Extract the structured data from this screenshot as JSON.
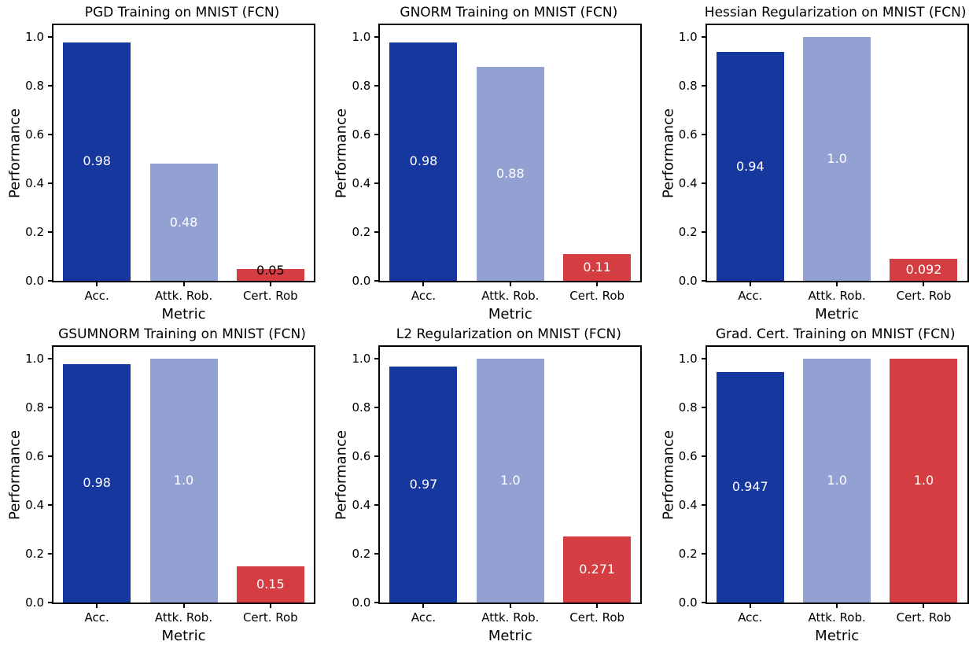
{
  "figure": {
    "background": "#ffffff",
    "rows": 2,
    "cols": 3
  },
  "palette": {
    "accuracy_bar": "#15379e",
    "attack_robustness_bar": "#92a1d2",
    "certified_robustness_bar": "#d43d42",
    "spine": "#000000",
    "text": "#000000",
    "bar_label_light": "#ffffff",
    "bar_label_dark": "#000000"
  },
  "axis": {
    "ylabel": "Performance",
    "xlabel": "Metric",
    "ytick_labels": [
      "0.0",
      "0.2",
      "0.4",
      "0.6",
      "0.8",
      "1.0"
    ],
    "ytick_values": [
      0.0,
      0.2,
      0.4,
      0.6,
      0.8,
      1.0
    ]
  },
  "chart_data": [
    {
      "type": "bar",
      "title": "PGD Training on MNIST (FCN)",
      "xlabel": "Metric",
      "ylabel": "Performance",
      "categories": [
        "Acc.",
        "Attk. Rob.",
        "Cert. Rob"
      ],
      "values": [
        0.98,
        0.48,
        0.05
      ],
      "bar_labels": [
        "0.98",
        "0.48",
        "0.05"
      ],
      "bar_label_colors": [
        "#ffffff",
        "#ffffff",
        "#000000"
      ],
      "bar_colors": [
        "#15379e",
        "#92a1d2",
        "#d43d42"
      ],
      "ylim": [
        0,
        1.05
      ],
      "grid": false,
      "legend": "none"
    },
    {
      "type": "bar",
      "title": "GNORM Training on MNIST (FCN)",
      "xlabel": "Metric",
      "ylabel": "Performance",
      "categories": [
        "Acc.",
        "Attk. Rob.",
        "Cert. Rob"
      ],
      "values": [
        0.98,
        0.88,
        0.11
      ],
      "bar_labels": [
        "0.98",
        "0.88",
        "0.11"
      ],
      "bar_label_colors": [
        "#ffffff",
        "#ffffff",
        "#ffffff"
      ],
      "bar_colors": [
        "#15379e",
        "#92a1d2",
        "#d43d42"
      ],
      "ylim": [
        0,
        1.05
      ],
      "grid": false,
      "legend": "none"
    },
    {
      "type": "bar",
      "title": "Hessian Regularization on MNIST (FCN)",
      "xlabel": "Metric",
      "ylabel": "Performance",
      "categories": [
        "Acc.",
        "Attk. Rob.",
        "Cert. Rob"
      ],
      "values": [
        0.94,
        1.0,
        0.092
      ],
      "bar_labels": [
        "0.94",
        "1.0",
        "0.092"
      ],
      "bar_label_colors": [
        "#ffffff",
        "#ffffff",
        "#ffffff"
      ],
      "bar_colors": [
        "#15379e",
        "#92a1d2",
        "#d43d42"
      ],
      "ylim": [
        0,
        1.05
      ],
      "grid": false,
      "legend": "none"
    },
    {
      "type": "bar",
      "title": "GSUMNORM Training on MNIST (FCN)",
      "xlabel": "Metric",
      "ylabel": "Performance",
      "categories": [
        "Acc.",
        "Attk. Rob.",
        "Cert. Rob"
      ],
      "values": [
        0.98,
        1.0,
        0.15
      ],
      "bar_labels": [
        "0.98",
        "1.0",
        "0.15"
      ],
      "bar_label_colors": [
        "#ffffff",
        "#ffffff",
        "#ffffff"
      ],
      "bar_colors": [
        "#15379e",
        "#92a1d2",
        "#d43d42"
      ],
      "ylim": [
        0,
        1.05
      ],
      "grid": false,
      "legend": "none"
    },
    {
      "type": "bar",
      "title": "L2 Regularization on MNIST (FCN)",
      "xlabel": "Metric",
      "ylabel": "Performance",
      "categories": [
        "Acc.",
        "Attk. Rob.",
        "Cert. Rob"
      ],
      "values": [
        0.97,
        1.0,
        0.271
      ],
      "bar_labels": [
        "0.97",
        "1.0",
        "0.271"
      ],
      "bar_label_colors": [
        "#ffffff",
        "#ffffff",
        "#ffffff"
      ],
      "bar_colors": [
        "#15379e",
        "#92a1d2",
        "#d43d42"
      ],
      "ylim": [
        0,
        1.05
      ],
      "grid": false,
      "legend": "none"
    },
    {
      "type": "bar",
      "title": "Grad. Cert. Training on MNIST (FCN)",
      "xlabel": "Metric",
      "ylabel": "Performance",
      "categories": [
        "Acc.",
        "Attk. Rob.",
        "Cert. Rob"
      ],
      "values": [
        0.947,
        1.0,
        1.0
      ],
      "bar_labels": [
        "0.947",
        "1.0",
        "1.0"
      ],
      "bar_label_colors": [
        "#ffffff",
        "#ffffff",
        "#ffffff"
      ],
      "bar_colors": [
        "#15379e",
        "#92a1d2",
        "#d43d42"
      ],
      "ylim": [
        0,
        1.05
      ],
      "grid": false,
      "legend": "none"
    }
  ]
}
